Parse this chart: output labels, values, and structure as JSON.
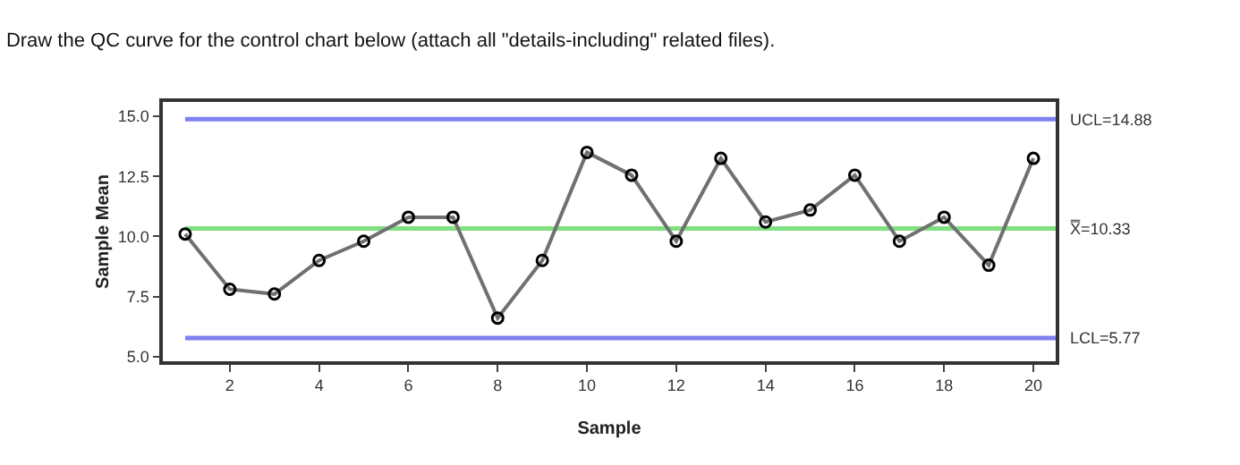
{
  "chart_data": {
    "type": "line",
    "title": "Draw the QC curve for the control chart below (attach all \"details-including\" related files).",
    "xlabel": "Sample",
    "ylabel": "Sample Mean",
    "x": [
      1,
      2,
      3,
      4,
      5,
      6,
      7,
      8,
      9,
      10,
      11,
      12,
      13,
      14,
      15,
      16,
      17,
      18,
      19,
      20
    ],
    "series": [
      {
        "color": "#707070",
        "values": [
          10.1,
          7.8,
          7.6,
          9.0,
          9.8,
          10.8,
          10.8,
          6.6,
          9.0,
          13.5,
          12.55,
          9.8,
          13.25,
          10.6,
          11.1,
          12.55,
          9.8,
          10.8,
          8.8,
          13.25
        ]
      }
    ],
    "xlim": [
      0.5,
      20.5
    ],
    "xticks": [
      2,
      4,
      6,
      8,
      10,
      12,
      14,
      16,
      18,
      20
    ],
    "ylim": [
      4.8,
      15.6
    ],
    "yticks": [
      {
        "value": 5,
        "label": "5.0"
      },
      {
        "value": 7.5,
        "label": "7.5"
      },
      {
        "value": 10,
        "label": "10.0"
      },
      {
        "value": 12.5,
        "label": "12.5"
      },
      {
        "value": 15,
        "label": "15.0"
      }
    ],
    "ref_lines": [
      {
        "axis": "y",
        "value": 14.88,
        "label": "UCL=14.88",
        "color": "#8080f0"
      },
      {
        "axis": "y",
        "value": 10.33,
        "label": "X̿=10.33",
        "color": "#80e080"
      },
      {
        "axis": "y",
        "value": 5.77,
        "label": "LCL=5.77",
        "color": "#8080f0"
      }
    ],
    "marker": "circle",
    "grid": false
  }
}
